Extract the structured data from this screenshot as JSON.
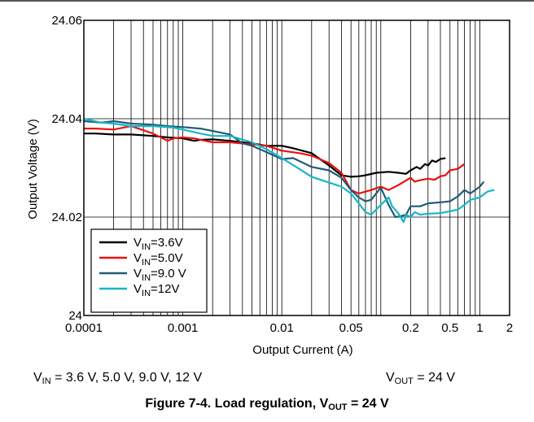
{
  "chart_data": {
    "type": "line",
    "title": "",
    "xlabel": "Output Current (A)",
    "ylabel": "Output Voltage (V)",
    "x_scale": "log",
    "xlim": [
      0.0001,
      2
    ],
    "ylim": [
      24,
      24.06
    ],
    "x_ticks": [
      {
        "value": 0.0001,
        "label": "0.0001"
      },
      {
        "value": 0.001,
        "label": "0.001"
      },
      {
        "value": 0.01,
        "label": "0.01"
      },
      {
        "value": 0.05,
        "label": "0.05"
      },
      {
        "value": 0.2,
        "label": "0.2"
      },
      {
        "value": 0.5,
        "label": "0.5"
      },
      {
        "value": 1,
        "label": "1"
      },
      {
        "value": 2,
        "label": "2"
      }
    ],
    "y_ticks": [
      {
        "value": 24,
        "label": "24"
      },
      {
        "value": 24.02,
        "label": "24.02"
      },
      {
        "value": 24.04,
        "label": "24.04"
      },
      {
        "value": 24.06,
        "label": "24.06"
      }
    ],
    "grid": true,
    "legend_position": "bottom-left",
    "series": [
      {
        "name_main": "V",
        "name_sub": "IN",
        "name_rest": "=3.6V",
        "color": "#000000",
        "points": [
          [
            0.0001,
            24.037
          ],
          [
            0.00013,
            24.037
          ],
          [
            0.0002,
            24.0368
          ],
          [
            0.0003,
            24.0368
          ],
          [
            0.0005,
            24.0365
          ],
          [
            0.0007,
            24.0362
          ],
          [
            0.001,
            24.036
          ],
          [
            0.0013,
            24.0355
          ],
          [
            0.0015,
            24.0357
          ],
          [
            0.002,
            24.0358
          ],
          [
            0.003,
            24.0355
          ],
          [
            0.004,
            24.0352
          ],
          [
            0.005,
            24.035
          ],
          [
            0.007,
            24.0345
          ],
          [
            0.01,
            24.0345
          ],
          [
            0.013,
            24.034
          ],
          [
            0.02,
            24.033
          ],
          [
            0.03,
            24.0305
          ],
          [
            0.04,
            24.0285
          ],
          [
            0.05,
            24.0282
          ],
          [
            0.06,
            24.0283
          ],
          [
            0.07,
            24.0285
          ],
          [
            0.09,
            24.029
          ],
          [
            0.12,
            24.0292
          ],
          [
            0.15,
            24.029
          ],
          [
            0.18,
            24.0288
          ],
          [
            0.2,
            24.0295
          ],
          [
            0.23,
            24.0302
          ],
          [
            0.25,
            24.0298
          ],
          [
            0.28,
            24.0308
          ],
          [
            0.3,
            24.0305
          ],
          [
            0.33,
            24.0315
          ],
          [
            0.36,
            24.0312
          ],
          [
            0.4,
            24.0318
          ],
          [
            0.45,
            24.032
          ]
        ]
      },
      {
        "name_main": "V",
        "name_sub": "IN",
        "name_rest": "=5.0V",
        "color": "#e8110f",
        "points": [
          [
            0.0001,
            24.038
          ],
          [
            0.00013,
            24.038
          ],
          [
            0.0002,
            24.0378
          ],
          [
            0.0003,
            24.0385
          ],
          [
            0.0005,
            24.037
          ],
          [
            0.0007,
            24.0355
          ],
          [
            0.0008,
            24.036
          ],
          [
            0.001,
            24.0362
          ],
          [
            0.0013,
            24.036
          ],
          [
            0.002,
            24.0352
          ],
          [
            0.003,
            24.0352
          ],
          [
            0.005,
            24.0348
          ],
          [
            0.007,
            24.0345
          ],
          [
            0.01,
            24.0335
          ],
          [
            0.015,
            24.033
          ],
          [
            0.02,
            24.0325
          ],
          [
            0.03,
            24.031
          ],
          [
            0.04,
            24.029
          ],
          [
            0.05,
            24.0255
          ],
          [
            0.06,
            24.0248
          ],
          [
            0.08,
            24.0255
          ],
          [
            0.1,
            24.0262
          ],
          [
            0.12,
            24.0255
          ],
          [
            0.15,
            24.0265
          ],
          [
            0.2,
            24.028
          ],
          [
            0.22,
            24.0272
          ],
          [
            0.25,
            24.0275
          ],
          [
            0.3,
            24.0278
          ],
          [
            0.35,
            24.0276
          ],
          [
            0.4,
            24.0283
          ],
          [
            0.45,
            24.0285
          ],
          [
            0.5,
            24.0295
          ],
          [
            0.6,
            24.0298
          ],
          [
            0.7,
            24.0308
          ]
        ]
      },
      {
        "name_main": "V",
        "name_sub": "IN",
        "name_rest": "=9.0 V",
        "color": "#1f5c74",
        "points": [
          [
            0.0001,
            24.0395
          ],
          [
            0.00015,
            24.0392
          ],
          [
            0.0002,
            24.0395
          ],
          [
            0.0003,
            24.039
          ],
          [
            0.0005,
            24.0388
          ],
          [
            0.0007,
            24.0385
          ],
          [
            0.001,
            24.0383
          ],
          [
            0.0015,
            24.038
          ],
          [
            0.002,
            24.0375
          ],
          [
            0.003,
            24.0368
          ],
          [
            0.004,
            24.035
          ],
          [
            0.005,
            24.0345
          ],
          [
            0.007,
            24.0332
          ],
          [
            0.01,
            24.0318
          ],
          [
            0.013,
            24.032
          ],
          [
            0.02,
            24.0302
          ],
          [
            0.03,
            24.0295
          ],
          [
            0.04,
            24.028
          ],
          [
            0.05,
            24.0255
          ],
          [
            0.06,
            24.024
          ],
          [
            0.07,
            24.0232
          ],
          [
            0.08,
            24.0235
          ],
          [
            0.1,
            24.026
          ],
          [
            0.12,
            24.0225
          ],
          [
            0.14,
            24.02
          ],
          [
            0.16,
            24.0202
          ],
          [
            0.18,
            24.0205
          ],
          [
            0.2,
            24.0222
          ],
          [
            0.25,
            24.0222
          ],
          [
            0.3,
            24.0228
          ],
          [
            0.4,
            24.023
          ],
          [
            0.5,
            24.0232
          ],
          [
            0.6,
            24.0242
          ],
          [
            0.7,
            24.0255
          ],
          [
            0.8,
            24.0248
          ],
          [
            0.9,
            24.0255
          ],
          [
            1.0,
            24.0262
          ],
          [
            1.1,
            24.0272
          ]
        ]
      },
      {
        "name_main": "V",
        "name_sub": "IN",
        "name_rest": "=12V",
        "color": "#17b6c8",
        "points": [
          [
            0.0001,
            24.04
          ],
          [
            0.00015,
            24.0392
          ],
          [
            0.0002,
            24.039
          ],
          [
            0.0003,
            24.0385
          ],
          [
            0.0005,
            24.0385
          ],
          [
            0.0008,
            24.0382
          ],
          [
            0.001,
            24.0378
          ],
          [
            0.0015,
            24.037
          ],
          [
            0.002,
            24.0365
          ],
          [
            0.003,
            24.0365
          ],
          [
            0.005,
            24.0352
          ],
          [
            0.007,
            24.0338
          ],
          [
            0.01,
            24.032
          ],
          [
            0.015,
            24.0298
          ],
          [
            0.02,
            24.0282
          ],
          [
            0.03,
            24.027
          ],
          [
            0.04,
            24.0262
          ],
          [
            0.05,
            24.0248
          ],
          [
            0.06,
            24.0228
          ],
          [
            0.07,
            24.021
          ],
          [
            0.08,
            24.0205
          ],
          [
            0.1,
            24.0225
          ],
          [
            0.12,
            24.024
          ],
          [
            0.13,
            24.0222
          ],
          [
            0.15,
            24.0208
          ],
          [
            0.17,
            24.019
          ],
          [
            0.18,
            24.0205
          ],
          [
            0.2,
            24.02
          ],
          [
            0.22,
            24.021
          ],
          [
            0.25,
            24.0205
          ],
          [
            0.3,
            24.0207
          ],
          [
            0.4,
            24.0208
          ],
          [
            0.5,
            24.0212
          ],
          [
            0.6,
            24.0215
          ],
          [
            0.7,
            24.0225
          ],
          [
            0.8,
            24.0235
          ],
          [
            1.0,
            24.024
          ],
          [
            1.2,
            24.0252
          ],
          [
            1.4,
            24.0255
          ]
        ]
      }
    ]
  },
  "conditions": {
    "vin": {
      "main": "V",
      "sub": "IN",
      "rest": " = 3.6 V, 5.0 V, 9.0 V, 12 V"
    },
    "vout": {
      "main": "V",
      "sub": "OUT",
      "rest": " = 24 V"
    }
  },
  "caption": {
    "main": "Figure 7-4. Load regulation, V",
    "sub": "OUT",
    "rest": " = 24 V"
  }
}
